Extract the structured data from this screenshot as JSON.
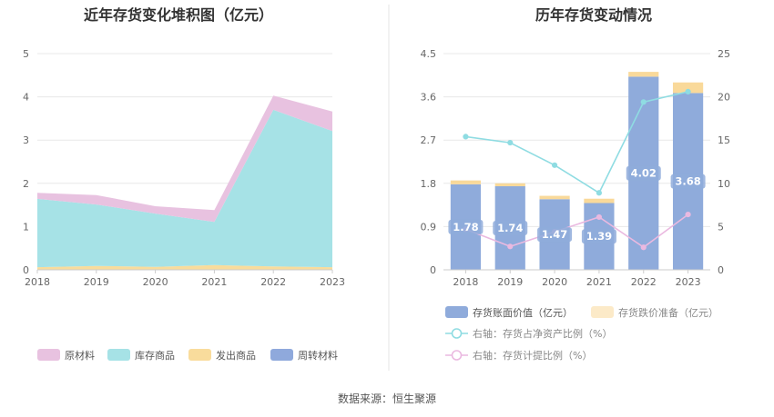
{
  "source_text": "数据来源：恒生聚源",
  "colors": {
    "raw_materials": "#e8c2e0",
    "finished_goods": "#a6e2e6",
    "goods_shipped": "#f9dc9c",
    "turnover_materials": "#8fa9dc",
    "book_value_bar": "#8fabdb",
    "impairment_bar": "#f9d99a",
    "ratio_line": "#8fdce2",
    "provision_line": "#eab9e0"
  },
  "chart_data": [
    {
      "type": "area",
      "stacked": true,
      "title": "近年存货变化堆积图（亿元）",
      "x": [
        "2018",
        "2019",
        "2020",
        "2021",
        "2022",
        "2023"
      ],
      "ylim": [
        0,
        5
      ],
      "yticks": [
        "0",
        "1",
        "2",
        "3",
        "4",
        "5"
      ],
      "grid": true,
      "legend_position": "bottom",
      "series": [
        {
          "name": "原材料",
          "color_key": "raw_materials",
          "values": [
            0.14,
            0.22,
            0.17,
            0.27,
            0.33,
            0.45
          ]
        },
        {
          "name": "库存商品",
          "color_key": "finished_goods",
          "values": [
            1.58,
            1.42,
            1.23,
            1.0,
            3.62,
            3.15
          ]
        },
        {
          "name": "发出商品",
          "color_key": "goods_shipped",
          "values": [
            0.05,
            0.08,
            0.06,
            0.1,
            0.07,
            0.05
          ]
        },
        {
          "name": "周转材料",
          "color_key": "turnover_materials",
          "values": [
            0.01,
            0.01,
            0.01,
            0.01,
            0.01,
            0.01
          ]
        }
      ]
    },
    {
      "type": "bar",
      "stacked": true,
      "title": "历年存货变动情况",
      "categories": [
        "2018",
        "2019",
        "2020",
        "2021",
        "2022",
        "2023"
      ],
      "ylim_left": [
        0,
        4.5
      ],
      "yticks_left": [
        "0",
        "0.9",
        "1.8",
        "2.7",
        "3.6",
        "4.5"
      ],
      "ylim_right": [
        0,
        25
      ],
      "yticks_right": [
        "0",
        "5",
        "10",
        "15",
        "20",
        "25"
      ],
      "grid": true,
      "legend_position": "bottom",
      "series": [
        {
          "name": "存货账面价值（亿元）",
          "kind": "bar",
          "axis": "left",
          "color_key": "book_value_bar",
          "values": [
            1.78,
            1.74,
            1.47,
            1.39,
            4.02,
            3.68
          ],
          "data_labels": [
            "1.78",
            "1.74",
            "1.47",
            "1.39",
            "4.02",
            "3.68"
          ]
        },
        {
          "name": "存货跌价准备（亿元）",
          "kind": "bar",
          "axis": "left",
          "color_key": "impairment_bar",
          "values": [
            0.08,
            0.06,
            0.07,
            0.09,
            0.1,
            0.22
          ]
        },
        {
          "name": "右轴：存货占净资产比例（%）",
          "kind": "line",
          "axis": "right",
          "color_key": "ratio_line",
          "values": [
            15.4,
            14.7,
            12.1,
            8.9,
            19.4,
            20.6
          ]
        },
        {
          "name": "右轴：存货计提比例（%）",
          "kind": "line",
          "axis": "right",
          "color_key": "provision_line",
          "values": [
            4.7,
            2.7,
            4.4,
            6.1,
            2.6,
            6.4
          ]
        }
      ]
    }
  ]
}
